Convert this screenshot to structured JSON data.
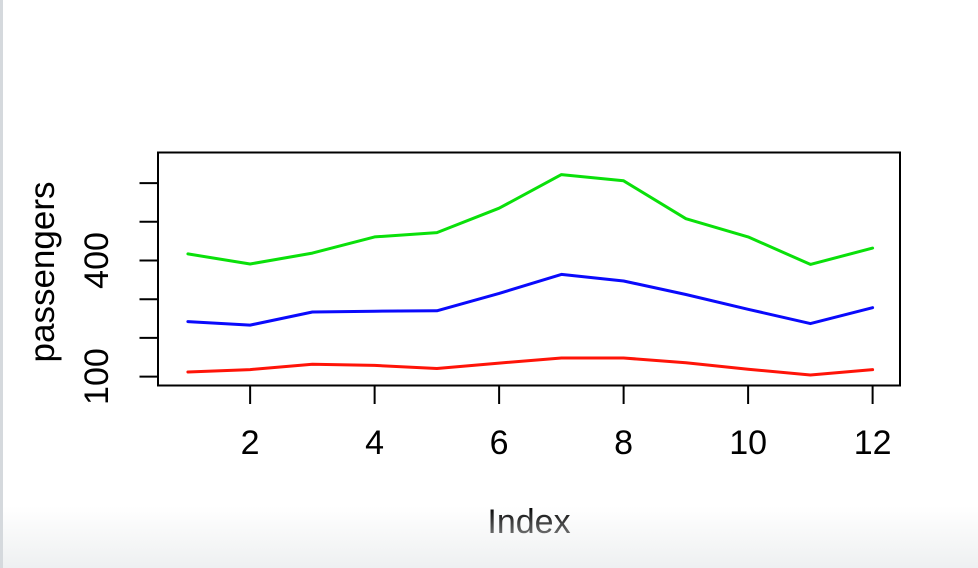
{
  "page": {
    "background": "#ffffff",
    "left_border_color": "#d5d9dd",
    "bottom_fade_color": "#eef0f1",
    "axis_color": "#000000",
    "text_color": "#000000"
  },
  "chart_data": {
    "type": "line",
    "title": "",
    "xlabel": "Index",
    "ylabel": "passengers",
    "x": [
      1,
      2,
      3,
      4,
      5,
      6,
      7,
      8,
      9,
      10,
      11,
      12
    ],
    "series": [
      {
        "name": "red-line-bottom",
        "color": "#ff1408",
        "values": [
          112,
          118,
          132,
          129,
          121,
          135,
          148,
          148,
          136,
          119,
          104,
          118
        ]
      },
      {
        "name": "blue-line-middle",
        "color": "#0a0afc",
        "values": [
          242,
          233,
          267,
          269,
          270,
          315,
          364,
          347,
          312,
          274,
          237,
          278
        ]
      },
      {
        "name": "green-line-top",
        "color": "#0ae00a",
        "values": [
          417,
          391,
          419,
          461,
          472,
          535,
          622,
          606,
          508,
          461,
          390,
          432
        ]
      }
    ],
    "xticks": [
      2,
      4,
      6,
      8,
      10,
      12
    ],
    "xtick_labels": [
      "2",
      "4",
      "6",
      "8",
      "10",
      "12"
    ],
    "yticks": [
      100,
      200,
      300,
      400,
      500,
      600
    ],
    "ytick_labels": [
      {
        "value": 100,
        "label": "100"
      },
      {
        "value": 400,
        "label": "400"
      }
    ],
    "xlim": [
      0.52,
      12.44
    ],
    "ylim": [
      77,
      679
    ],
    "grid": false,
    "legend": "none"
  }
}
